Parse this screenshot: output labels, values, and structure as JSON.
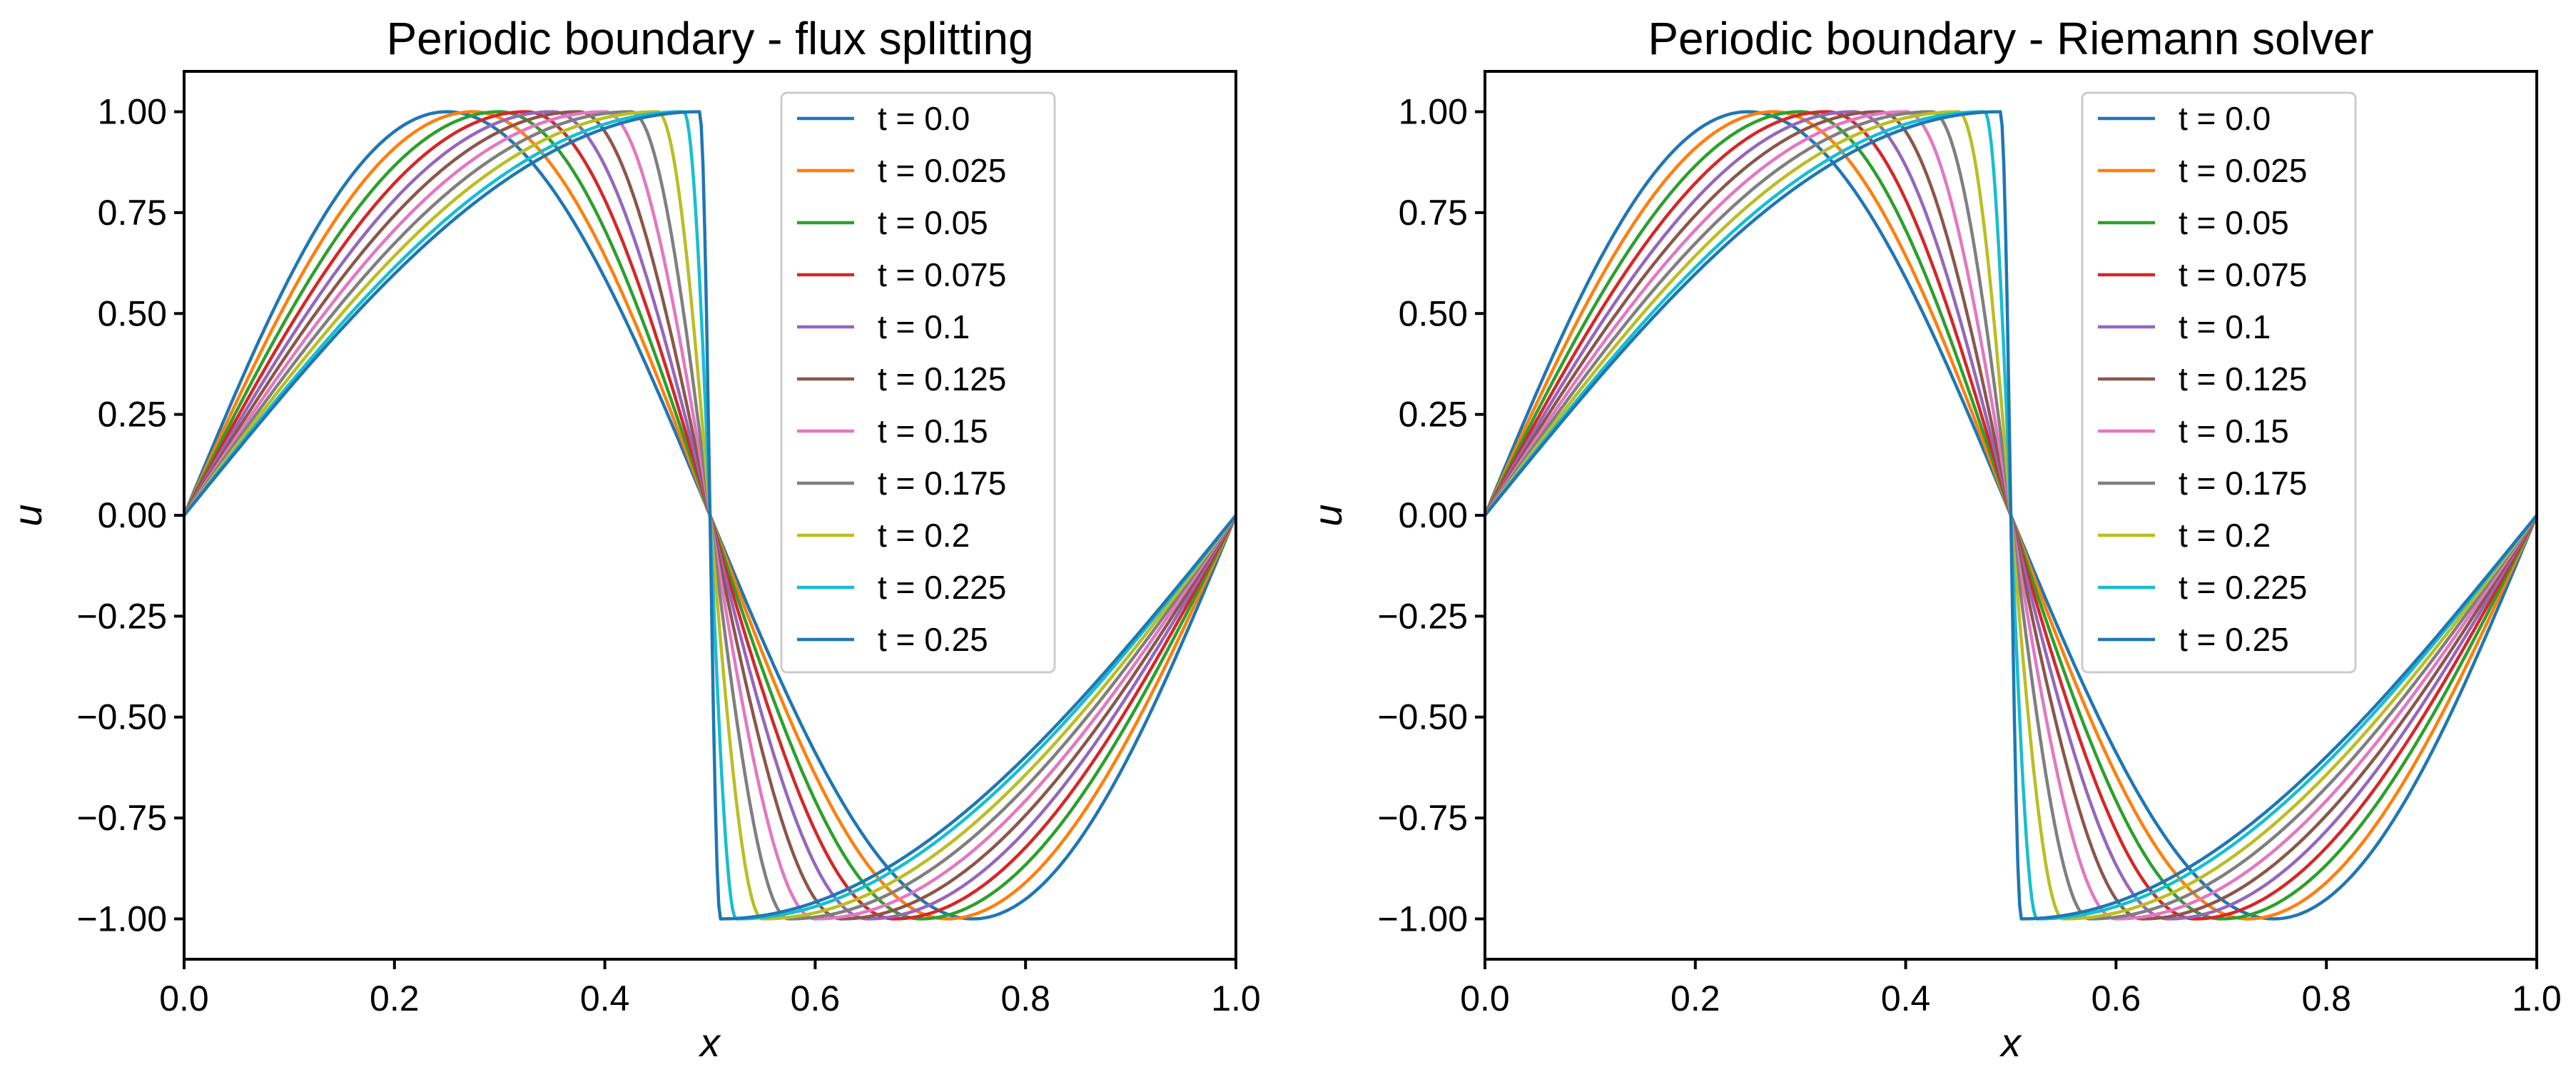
{
  "chart_data": [
    {
      "type": "line",
      "title": "Periodic boundary - flux splitting",
      "xlabel": "x",
      "ylabel": "u",
      "xlim": [
        0.0,
        1.0
      ],
      "ylim": [
        -1.1,
        1.1
      ],
      "xticks": [
        "0.0",
        "0.2",
        "0.4",
        "0.6",
        "0.8",
        "1.0"
      ],
      "yticks": [
        "1.00",
        "0.75",
        "0.50",
        "0.25",
        "0.00",
        "−0.25",
        "−0.50",
        "−0.75",
        "−1.00"
      ],
      "grid": false,
      "legend_position": "top-center",
      "series": [
        {
          "name": "t = 0.0",
          "color": "#1f77b4",
          "peak_x": 0.25,
          "shock_x": 0.5,
          "trough_x": 0.75,
          "shock_width": 0.0
        },
        {
          "name": "t = 0.025",
          "color": "#ff7f0e",
          "peak_x": 0.275,
          "shock_x": 0.5,
          "trough_x": 0.725,
          "shock_width": 0.0
        },
        {
          "name": "t = 0.05",
          "color": "#2ca02c",
          "peak_x": 0.3,
          "shock_x": 0.5,
          "trough_x": 0.7,
          "shock_width": 0.0
        },
        {
          "name": "t = 0.075",
          "color": "#d62728",
          "peak_x": 0.325,
          "shock_x": 0.5,
          "trough_x": 0.675,
          "shock_width": 0.0
        },
        {
          "name": "t = 0.1",
          "color": "#9467bd",
          "peak_x": 0.35,
          "shock_x": 0.5,
          "trough_x": 0.65,
          "shock_width": 0.0
        },
        {
          "name": "t = 0.125",
          "color": "#8c564b",
          "peak_x": 0.375,
          "shock_x": 0.5,
          "trough_x": 0.625,
          "shock_width": 0.0
        },
        {
          "name": "t = 0.15",
          "color": "#e377c2",
          "peak_x": 0.4,
          "shock_x": 0.5,
          "trough_x": 0.6,
          "shock_width": 0.0
        },
        {
          "name": "t = 0.175",
          "color": "#7f7f7f",
          "peak_x": 0.425,
          "shock_x": 0.5,
          "trough_x": 0.575,
          "shock_width": 0.0
        },
        {
          "name": "t = 0.2",
          "color": "#bcbd22",
          "peak_x": 0.45,
          "shock_x": 0.5,
          "trough_x": 0.55,
          "shock_width": 0.0
        },
        {
          "name": "t = 0.225",
          "color": "#17becf",
          "peak_x": 0.475,
          "shock_x": 0.5,
          "trough_x": 0.525,
          "shock_width": 0.0
        },
        {
          "name": "t = 0.25",
          "color": "#1f77b4",
          "peak_x": 0.49,
          "shock_x": 0.5,
          "trough_x": 0.51,
          "shock_width": 0.0
        }
      ]
    },
    {
      "type": "line",
      "title": "Periodic boundary - Riemann solver",
      "xlabel": "x",
      "ylabel": "u",
      "xlim": [
        0.0,
        1.0
      ],
      "ylim": [
        -1.1,
        1.1
      ],
      "xticks": [
        "0.0",
        "0.2",
        "0.4",
        "0.6",
        "0.8",
        "1.0"
      ],
      "yticks": [
        "1.00",
        "0.75",
        "0.50",
        "0.25",
        "0.00",
        "−0.25",
        "−0.50",
        "−0.75",
        "−1.00"
      ],
      "grid": false,
      "legend_position": "top-center",
      "series": [
        {
          "name": "t = 0.0",
          "color": "#1f77b4",
          "peak_x": 0.25,
          "shock_x": 0.5,
          "trough_x": 0.75,
          "shock_width": 0.0
        },
        {
          "name": "t = 0.025",
          "color": "#ff7f0e",
          "peak_x": 0.275,
          "shock_x": 0.5,
          "trough_x": 0.725,
          "shock_width": 0.0
        },
        {
          "name": "t = 0.05",
          "color": "#2ca02c",
          "peak_x": 0.3,
          "shock_x": 0.5,
          "trough_x": 0.7,
          "shock_width": 0.0
        },
        {
          "name": "t = 0.075",
          "color": "#d62728",
          "peak_x": 0.325,
          "shock_x": 0.5,
          "trough_x": 0.675,
          "shock_width": 0.0
        },
        {
          "name": "t = 0.1",
          "color": "#9467bd",
          "peak_x": 0.35,
          "shock_x": 0.5,
          "trough_x": 0.65,
          "shock_width": 0.0
        },
        {
          "name": "t = 0.125",
          "color": "#8c564b",
          "peak_x": 0.375,
          "shock_x": 0.5,
          "trough_x": 0.625,
          "shock_width": 0.0
        },
        {
          "name": "t = 0.15",
          "color": "#e377c2",
          "peak_x": 0.4,
          "shock_x": 0.5,
          "trough_x": 0.6,
          "shock_width": 0.0
        },
        {
          "name": "t = 0.175",
          "color": "#7f7f7f",
          "peak_x": 0.425,
          "shock_x": 0.5,
          "trough_x": 0.575,
          "shock_width": 0.0
        },
        {
          "name": "t = 0.2",
          "color": "#bcbd22",
          "peak_x": 0.45,
          "shock_x": 0.5,
          "trough_x": 0.55,
          "shock_width": 0.0
        },
        {
          "name": "t = 0.225",
          "color": "#17becf",
          "peak_x": 0.475,
          "shock_x": 0.5,
          "trough_x": 0.525,
          "shock_width": 0.0
        },
        {
          "name": "t = 0.25",
          "color": "#1f77b4",
          "peak_x": 0.49,
          "shock_x": 0.5,
          "trough_x": 0.51,
          "shock_width": 0.0
        }
      ]
    }
  ]
}
